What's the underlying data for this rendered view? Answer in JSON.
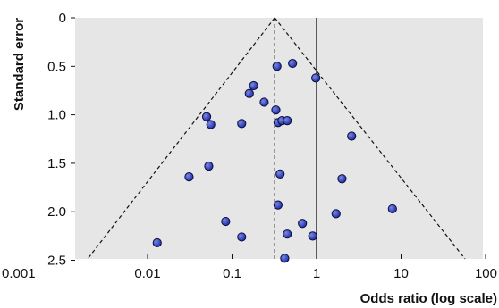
{
  "chart_data": {
    "type": "scatter",
    "chart_kind": "funnel plot",
    "xlabel": "Odds ratio (log scale)",
    "ylabel": "Standard error",
    "x_scale": "log",
    "xlim": [
      0.001,
      100
    ],
    "ylim": [
      0,
      2.55
    ],
    "y_reversed": true,
    "x_ticks": [
      "0.001",
      "0.01",
      "0.1",
      "1",
      "10",
      "100"
    ],
    "y_ticks": [
      "0",
      "0.5",
      "1.0",
      "1.5",
      "2.0",
      "2.5"
    ],
    "grid": false,
    "reference_line_x": 1,
    "pooled_estimate_x": 0.32,
    "funnel_apex": {
      "x": 0.32,
      "y": 0
    },
    "points": [
      {
        "x": 0.34,
        "y": 0.5
      },
      {
        "x": 0.52,
        "y": 0.47
      },
      {
        "x": 0.98,
        "y": 0.62
      },
      {
        "x": 0.18,
        "y": 0.7
      },
      {
        "x": 0.16,
        "y": 0.78
      },
      {
        "x": 0.24,
        "y": 0.87
      },
      {
        "x": 0.33,
        "y": 0.95
      },
      {
        "x": 0.05,
        "y": 1.02
      },
      {
        "x": 0.056,
        "y": 1.1
      },
      {
        "x": 0.13,
        "y": 1.09
      },
      {
        "x": 0.35,
        "y": 1.08
      },
      {
        "x": 0.39,
        "y": 1.06
      },
      {
        "x": 0.45,
        "y": 1.06
      },
      {
        "x": 2.6,
        "y": 1.22
      },
      {
        "x": 0.053,
        "y": 1.53
      },
      {
        "x": 0.031,
        "y": 1.64
      },
      {
        "x": 0.37,
        "y": 1.61
      },
      {
        "x": 2.0,
        "y": 1.66
      },
      {
        "x": 0.35,
        "y": 1.93
      },
      {
        "x": 7.9,
        "y": 1.97
      },
      {
        "x": 1.7,
        "y": 2.02
      },
      {
        "x": 0.084,
        "y": 2.1
      },
      {
        "x": 0.68,
        "y": 2.12
      },
      {
        "x": 0.013,
        "y": 2.32
      },
      {
        "x": 0.13,
        "y": 2.26
      },
      {
        "x": 0.45,
        "y": 2.23
      },
      {
        "x": 0.9,
        "y": 2.25
      },
      {
        "x": 0.42,
        "y": 2.48
      }
    ],
    "colors": {
      "background": "#e6e6e6",
      "point_fill": "#2233aa",
      "point_highlight": "#7a86e6",
      "line": "#111111"
    }
  }
}
